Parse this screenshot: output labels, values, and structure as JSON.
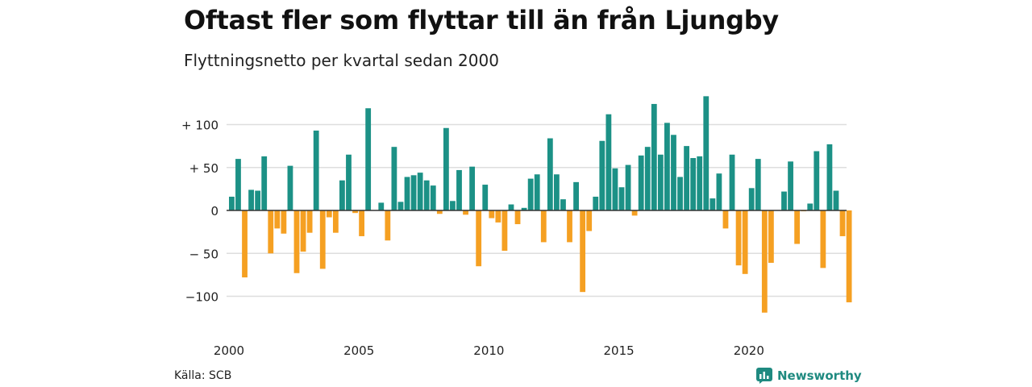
{
  "title": "Oftast fler som flyttar till än från Ljungby",
  "subtitle": "Flyttningsnetto per kvartal sedan 2000",
  "source": "Källa: SCB",
  "brand": {
    "name": "Newsworthy",
    "icon": "newsworthy-logo-icon",
    "color": "#1f8a80"
  },
  "colors": {
    "positive": "#1c9186",
    "negative": "#f5a022",
    "grid": "#dedede",
    "zero_line": "#333333"
  },
  "chart_data": {
    "type": "bar",
    "title": "Oftast fler som flyttar till än från Ljungby",
    "subtitle": "Flyttningsnetto per kvartal sedan 2000",
    "xlabel": "",
    "ylabel": "",
    "x_ticks": [
      {
        "year": 2000,
        "label": "2000"
      },
      {
        "year": 2005,
        "label": "2005"
      },
      {
        "year": 2010,
        "label": "2010"
      },
      {
        "year": 2015,
        "label": "2015"
      },
      {
        "year": 2020,
        "label": "2020"
      }
    ],
    "y_ticks": [
      {
        "value": 100,
        "label": "+ 100"
      },
      {
        "value": 50,
        "label": "+  50"
      },
      {
        "value": 0,
        "label": "0"
      },
      {
        "value": -50,
        "label": "− 50"
      },
      {
        "value": -100,
        "label": "−100"
      }
    ],
    "ylim": [
      -118,
      133
    ],
    "grid": true,
    "start": "2000 Q1",
    "series": [
      {
        "values": [
          16,
          60,
          -78,
          24,
          23,
          63,
          -50,
          -21,
          -27,
          52,
          -73,
          -48,
          -26,
          93,
          -68,
          -8,
          -26,
          35,
          65,
          -3,
          -30,
          119,
          0,
          9,
          -35,
          74,
          10,
          39,
          41,
          44,
          35,
          29,
          -4,
          96,
          11,
          47,
          -5,
          51,
          -65,
          30,
          -9,
          -14,
          -47,
          7,
          -16,
          3,
          37,
          42,
          -37,
          84,
          42,
          13,
          -37,
          33,
          -95,
          -24,
          16,
          81,
          112,
          49,
          27,
          53,
          -6,
          64,
          74,
          124,
          65,
          102,
          88,
          39,
          75,
          61,
          63,
          133,
          14,
          43,
          -21,
          65,
          -64,
          -74,
          26,
          60,
          -119,
          -61,
          0,
          22,
          57,
          -39,
          -1,
          8,
          69,
          -67,
          77,
          23,
          -30,
          -107
        ]
      }
    ]
  }
}
